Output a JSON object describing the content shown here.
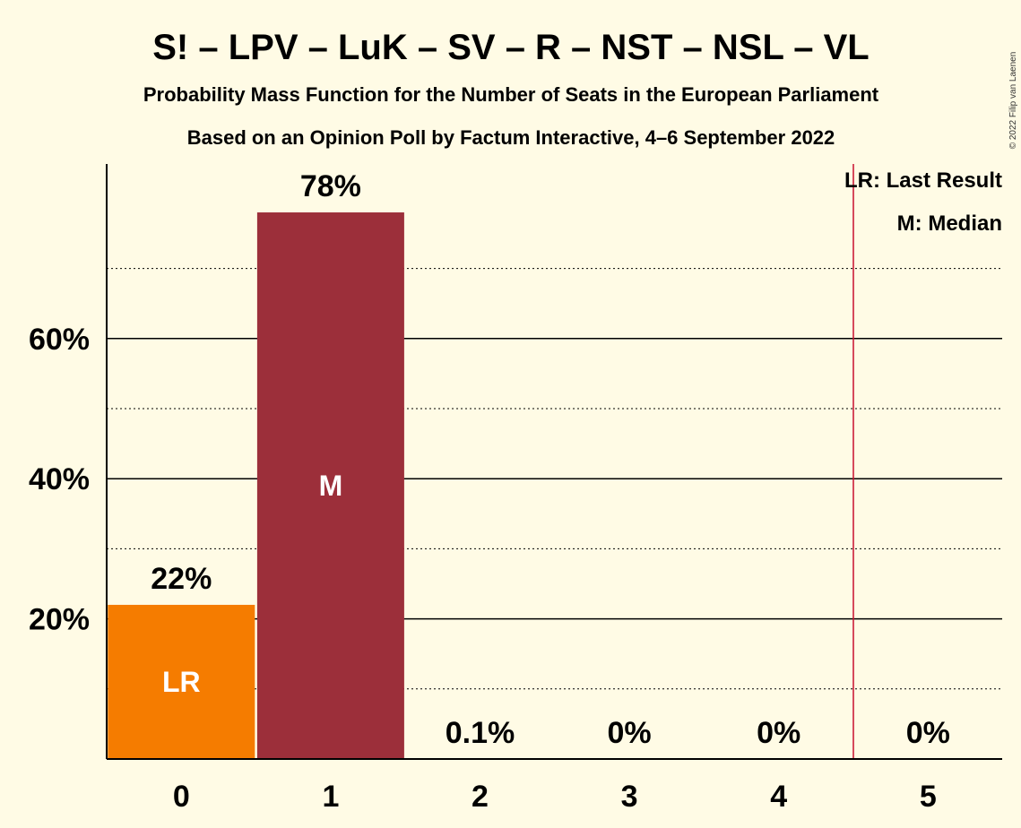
{
  "chart_data": {
    "type": "bar",
    "title": "S! – LPV – LuK – SV – R – NST – NSL – VL",
    "subtitle1": "Probability Mass Function for the Number of Seats in the European Parliament",
    "subtitle2": "Based on an Opinion Poll by Factum Interactive, 4–6 September 2022",
    "categories": [
      "0",
      "1",
      "2",
      "3",
      "4",
      "5"
    ],
    "values": [
      22,
      78,
      0.1,
      0,
      0,
      0
    ],
    "value_labels": [
      "22%",
      "78%",
      "0.1%",
      "0%",
      "0%",
      "0%"
    ],
    "in_bar_labels": [
      "LR",
      "M",
      "",
      "",
      "",
      ""
    ],
    "bar_colors": [
      "#f57c00",
      "#9c2f3a",
      "#9c2f3a",
      "#9c2f3a",
      "#9c2f3a",
      "#9c2f3a"
    ],
    "ylim": [
      0,
      85
    ],
    "major_ticks": [
      20,
      40,
      60
    ],
    "major_tick_labels": [
      "20%",
      "40%",
      "60%"
    ],
    "minor_gridlines": [
      10,
      30,
      50,
      70
    ],
    "last_result_line_between": [
      4,
      5
    ],
    "last_result_line_color": "#c8102e",
    "legend": [
      "LR: Last Result",
      "M: Median"
    ],
    "legend_position": "top-right",
    "copyright": "© 2022 Filip van Laenen"
  }
}
